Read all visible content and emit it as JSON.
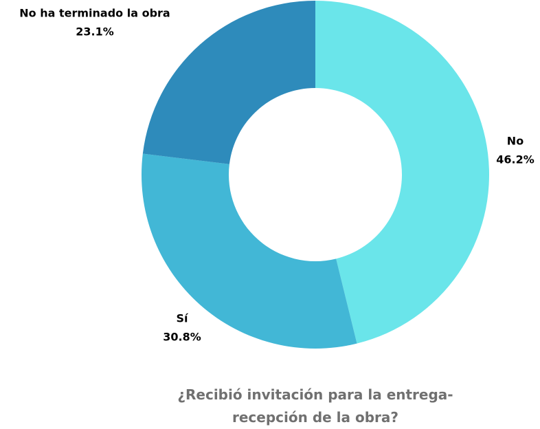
{
  "chart_data": {
    "type": "donut",
    "title": "¿Recibió invitación para la entrega-recepción de la obra?",
    "categories": [
      "No",
      "Sí",
      "No ha terminado la obra"
    ],
    "values": [
      46.2,
      30.8,
      23.1
    ],
    "value_labels": [
      "46.2%",
      "30.8%",
      "23.1%"
    ],
    "colors": [
      "#6ae5ea",
      "#42b7d6",
      "#2e8bbb"
    ]
  }
}
